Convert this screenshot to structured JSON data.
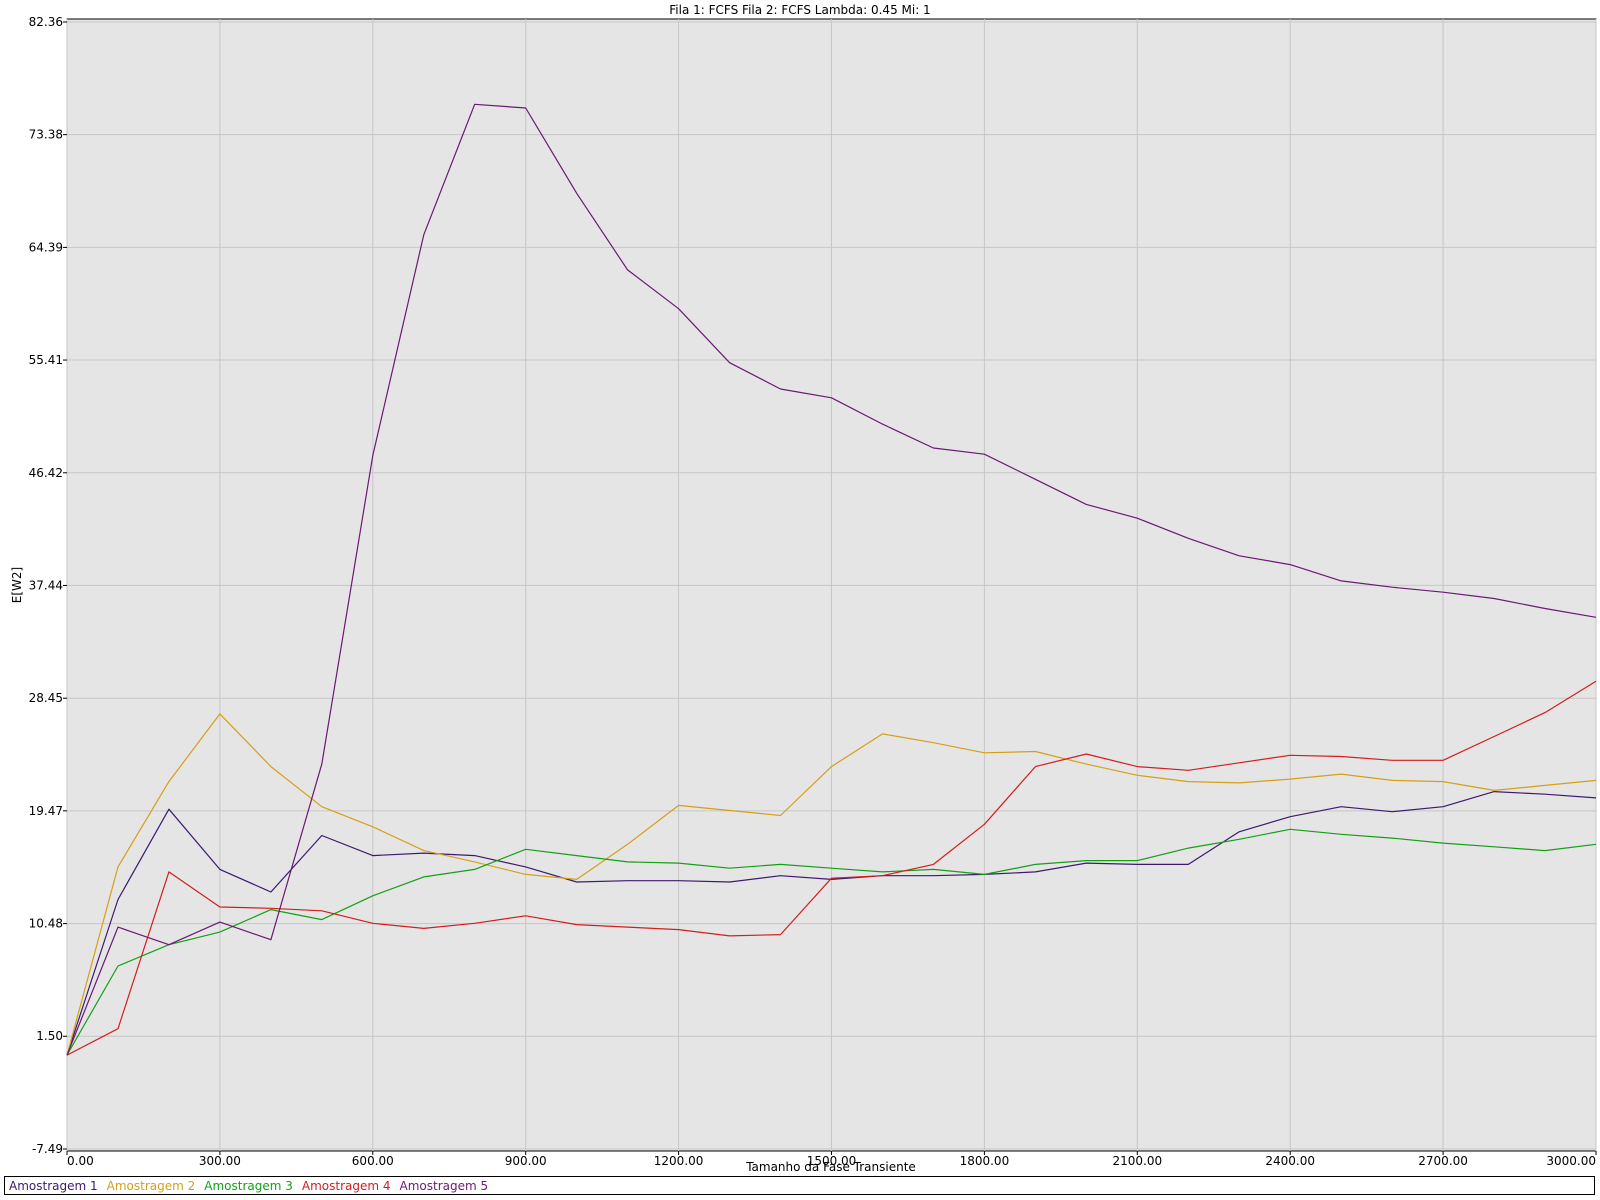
{
  "chart_data": {
    "type": "line",
    "title": "Fila 1: FCFS Fila 2: FCFS Lambda: 0.45 Mi: 1",
    "xlabel": "Tamanho da Fase Transiente",
    "ylabel": "E[W2]",
    "xlim": [
      0,
      3000
    ],
    "ylim": [
      -7.49,
      82.36
    ],
    "x_ticks": [
      "0.00",
      "300.00",
      "600.00",
      "900.00",
      "1200.00",
      "1500.00",
      "1800.00",
      "2100.00",
      "2400.00",
      "2700.00",
      "3000.00"
    ],
    "y_ticks": [
      "82.36",
      "73.38",
      "64.39",
      "55.41",
      "46.42",
      "37.44",
      "28.45",
      "19.47",
      "10.48",
      "1.50",
      "-7.49"
    ],
    "grid": true,
    "legend_position": "bottom",
    "x": [
      0,
      100,
      200,
      300,
      400,
      500,
      600,
      700,
      800,
      900,
      1000,
      1100,
      1200,
      1300,
      1400,
      1500,
      1600,
      1700,
      1800,
      1900,
      2000,
      2100,
      2200,
      2300,
      2400,
      2500,
      2600,
      2700,
      2800,
      2900,
      3000
    ],
    "series": [
      {
        "name": "Amostragem 1",
        "color": "#3c1a6e",
        "values": [
          0.0,
          12.4,
          19.6,
          14.8,
          13.0,
          17.5,
          15.9,
          16.1,
          15.9,
          15.0,
          13.8,
          13.9,
          13.9,
          13.8,
          14.3,
          14.0,
          14.3,
          14.3,
          14.4,
          14.6,
          15.3,
          15.2,
          15.2,
          17.8,
          19.0,
          19.8,
          19.4,
          19.8,
          21.0,
          20.8,
          20.5
        ],
        "values_note_ignore": null
      },
      {
        "name": "Amostragem 2",
        "color": "#d4a017",
        "values": [
          0.0,
          15.0,
          21.8,
          27.2,
          23.0,
          19.8,
          18.2,
          16.3,
          15.4,
          14.4,
          14.0,
          16.8,
          19.9,
          19.5,
          19.1,
          23.0,
          25.6,
          24.9,
          24.1,
          24.2,
          23.2,
          22.3,
          21.8,
          21.7,
          22.0,
          22.4,
          21.9,
          21.8,
          21.1,
          21.5,
          21.9
        ],
        "values_note_ignore": null
      },
      {
        "name": "Amostragem 3",
        "color": "#13a013",
        "values": [
          0.0,
          7.1,
          8.8,
          9.8,
          11.6,
          10.8,
          12.7,
          14.2,
          14.8,
          16.4,
          15.9,
          15.4,
          15.3,
          14.9,
          15.2,
          14.9,
          14.6,
          14.8,
          14.4,
          15.2,
          15.5,
          15.5,
          16.5,
          17.2,
          18.0,
          17.6,
          17.3,
          16.9,
          16.6,
          16.3,
          16.8
        ],
        "values_note_ignore": null
      },
      {
        "name": "Amostragem 4",
        "color": "#d21e1e",
        "values": [
          0.0,
          2.1,
          14.6,
          11.8,
          11.7,
          11.5,
          10.5,
          10.1,
          10.5,
          11.1,
          10.4,
          10.2,
          10.0,
          9.5,
          9.6,
          14.1,
          14.3,
          15.2,
          18.4,
          23.0,
          24.0,
          23.0,
          22.7,
          23.3,
          23.9,
          23.8,
          23.5,
          23.5,
          25.4,
          27.3,
          29.8
        ],
        "values_note_ignore": null
      },
      {
        "name": "Amostragem 5",
        "color": "#6a1a72",
        "values": [
          0.0,
          10.2,
          8.8,
          10.6,
          9.2,
          23.2,
          47.8,
          65.4,
          75.8,
          75.5,
          68.7,
          62.6,
          59.5,
          55.2,
          53.1,
          52.4,
          50.3,
          48.4,
          47.9,
          45.9,
          43.9,
          42.8,
          41.2,
          39.8,
          39.1,
          37.8,
          37.3,
          36.9,
          36.4,
          35.6,
          34.9
        ],
        "values_note_ignore": null
      }
    ]
  }
}
